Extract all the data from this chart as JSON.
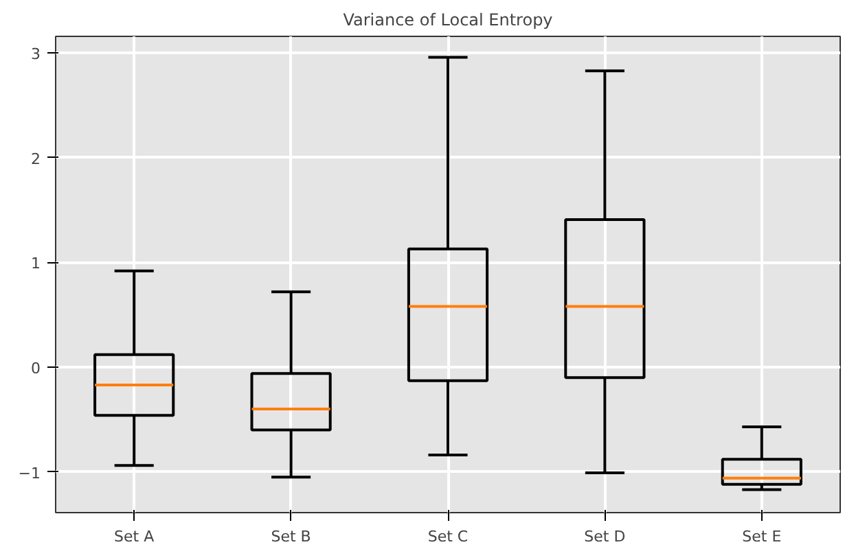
{
  "chart_data": {
    "type": "box",
    "title": "Variance of Local Entropy",
    "categories": [
      "Set A",
      "Set B",
      "Set C",
      "Set D",
      "Set E"
    ],
    "boxes": [
      {
        "low": -0.94,
        "q1": -0.46,
        "median": -0.17,
        "q3": 0.12,
        "high": 0.92
      },
      {
        "low": -1.05,
        "q1": -0.6,
        "median": -0.4,
        "q3": -0.06,
        "high": 0.72
      },
      {
        "low": -0.84,
        "q1": -0.13,
        "median": 0.58,
        "q3": 1.13,
        "high": 2.96
      },
      {
        "low": -1.01,
        "q1": -0.1,
        "median": 0.58,
        "q3": 1.41,
        "high": 2.83
      },
      {
        "low": -1.17,
        "q1": -1.12,
        "median": -1.06,
        "q3": -0.88,
        "high": -0.57
      }
    ],
    "color": "#000000",
    "ylim": [
      -1.39,
      3.16
    ],
    "yticks": [
      -1,
      0,
      1,
      2,
      3
    ],
    "grid": true
  }
}
